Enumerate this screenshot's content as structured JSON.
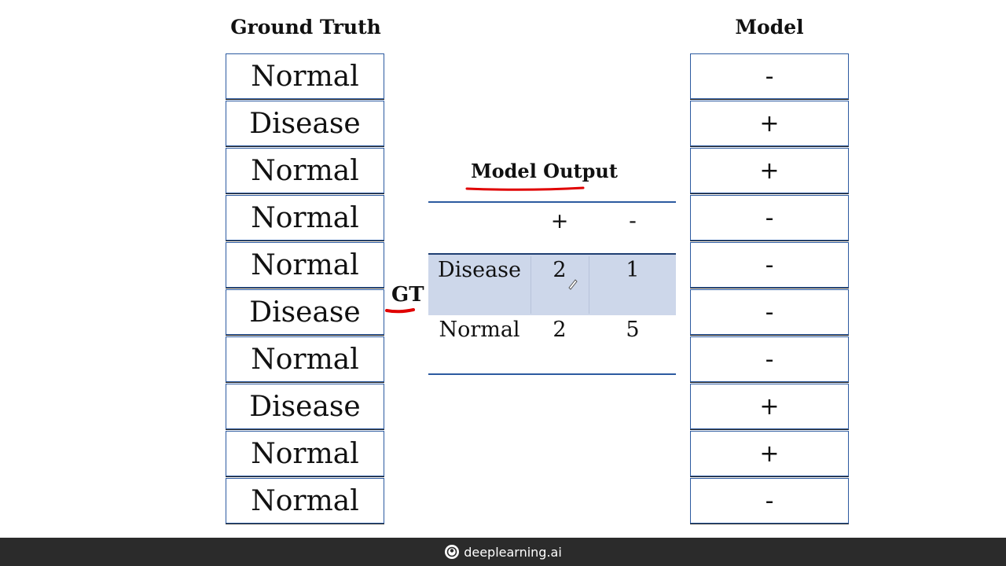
{
  "ground_truth": {
    "title": "Ground Truth",
    "items": [
      "Normal",
      "Disease",
      "Normal",
      "Normal",
      "Normal",
      "Disease",
      "Normal",
      "Disease",
      "Normal",
      "Normal"
    ]
  },
  "model": {
    "title": "Model",
    "items": [
      "-",
      "+",
      "+",
      "-",
      "-",
      "-",
      "-",
      "+",
      "+",
      "-"
    ]
  },
  "confusion_matrix": {
    "title": "Model Output",
    "row_axis_label": "GT",
    "columns": [
      "+",
      "-"
    ],
    "rows": [
      {
        "label": "Disease",
        "values": [
          "2",
          "1"
        ]
      },
      {
        "label": "Normal",
        "values": [
          "2",
          "5"
        ]
      }
    ]
  },
  "annotation": {
    "ink_color": "#e00000"
  },
  "highlight_color": "#cdd7ea",
  "footer": {
    "brand": "deeplearning.ai"
  }
}
